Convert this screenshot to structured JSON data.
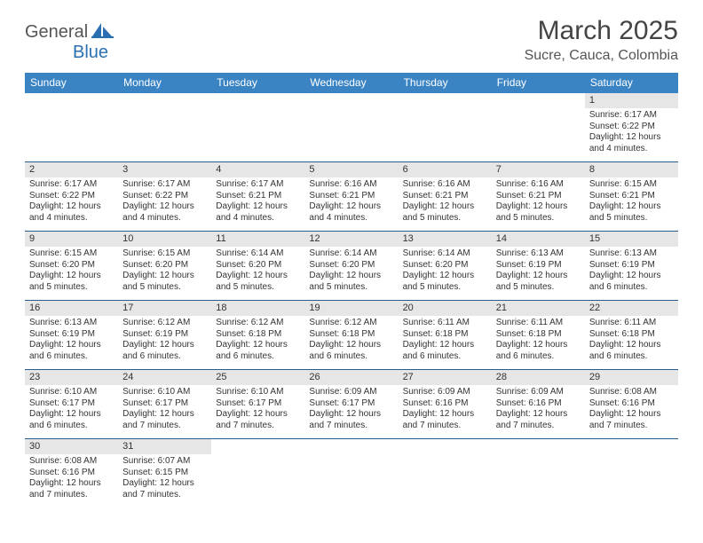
{
  "logo": {
    "text1": "General",
    "text2": "Blue"
  },
  "title": "March 2025",
  "location": "Sucre, Cauca, Colombia",
  "colors": {
    "header_bg": "#3b84c4",
    "header_text": "#ffffff",
    "daynum_bg": "#e6e6e6",
    "row_border": "#2a5d8f",
    "title_color": "#444444",
    "location_color": "#555555",
    "logo_gray": "#555555",
    "logo_blue": "#2b6fb3"
  },
  "day_names": [
    "Sunday",
    "Monday",
    "Tuesday",
    "Wednesday",
    "Thursday",
    "Friday",
    "Saturday"
  ],
  "weeks": [
    [
      null,
      null,
      null,
      null,
      null,
      null,
      {
        "n": "1",
        "sr": "6:17 AM",
        "ss": "6:22 PM",
        "dl": "12 hours and 4 minutes."
      }
    ],
    [
      {
        "n": "2",
        "sr": "6:17 AM",
        "ss": "6:22 PM",
        "dl": "12 hours and 4 minutes."
      },
      {
        "n": "3",
        "sr": "6:17 AM",
        "ss": "6:22 PM",
        "dl": "12 hours and 4 minutes."
      },
      {
        "n": "4",
        "sr": "6:17 AM",
        "ss": "6:21 PM",
        "dl": "12 hours and 4 minutes."
      },
      {
        "n": "5",
        "sr": "6:16 AM",
        "ss": "6:21 PM",
        "dl": "12 hours and 4 minutes."
      },
      {
        "n": "6",
        "sr": "6:16 AM",
        "ss": "6:21 PM",
        "dl": "12 hours and 5 minutes."
      },
      {
        "n": "7",
        "sr": "6:16 AM",
        "ss": "6:21 PM",
        "dl": "12 hours and 5 minutes."
      },
      {
        "n": "8",
        "sr": "6:15 AM",
        "ss": "6:21 PM",
        "dl": "12 hours and 5 minutes."
      }
    ],
    [
      {
        "n": "9",
        "sr": "6:15 AM",
        "ss": "6:20 PM",
        "dl": "12 hours and 5 minutes."
      },
      {
        "n": "10",
        "sr": "6:15 AM",
        "ss": "6:20 PM",
        "dl": "12 hours and 5 minutes."
      },
      {
        "n": "11",
        "sr": "6:14 AM",
        "ss": "6:20 PM",
        "dl": "12 hours and 5 minutes."
      },
      {
        "n": "12",
        "sr": "6:14 AM",
        "ss": "6:20 PM",
        "dl": "12 hours and 5 minutes."
      },
      {
        "n": "13",
        "sr": "6:14 AM",
        "ss": "6:20 PM",
        "dl": "12 hours and 5 minutes."
      },
      {
        "n": "14",
        "sr": "6:13 AM",
        "ss": "6:19 PM",
        "dl": "12 hours and 5 minutes."
      },
      {
        "n": "15",
        "sr": "6:13 AM",
        "ss": "6:19 PM",
        "dl": "12 hours and 6 minutes."
      }
    ],
    [
      {
        "n": "16",
        "sr": "6:13 AM",
        "ss": "6:19 PM",
        "dl": "12 hours and 6 minutes."
      },
      {
        "n": "17",
        "sr": "6:12 AM",
        "ss": "6:19 PM",
        "dl": "12 hours and 6 minutes."
      },
      {
        "n": "18",
        "sr": "6:12 AM",
        "ss": "6:18 PM",
        "dl": "12 hours and 6 minutes."
      },
      {
        "n": "19",
        "sr": "6:12 AM",
        "ss": "6:18 PM",
        "dl": "12 hours and 6 minutes."
      },
      {
        "n": "20",
        "sr": "6:11 AM",
        "ss": "6:18 PM",
        "dl": "12 hours and 6 minutes."
      },
      {
        "n": "21",
        "sr": "6:11 AM",
        "ss": "6:18 PM",
        "dl": "12 hours and 6 minutes."
      },
      {
        "n": "22",
        "sr": "6:11 AM",
        "ss": "6:18 PM",
        "dl": "12 hours and 6 minutes."
      }
    ],
    [
      {
        "n": "23",
        "sr": "6:10 AM",
        "ss": "6:17 PM",
        "dl": "12 hours and 6 minutes."
      },
      {
        "n": "24",
        "sr": "6:10 AM",
        "ss": "6:17 PM",
        "dl": "12 hours and 7 minutes."
      },
      {
        "n": "25",
        "sr": "6:10 AM",
        "ss": "6:17 PM",
        "dl": "12 hours and 7 minutes."
      },
      {
        "n": "26",
        "sr": "6:09 AM",
        "ss": "6:17 PM",
        "dl": "12 hours and 7 minutes."
      },
      {
        "n": "27",
        "sr": "6:09 AM",
        "ss": "6:16 PM",
        "dl": "12 hours and 7 minutes."
      },
      {
        "n": "28",
        "sr": "6:09 AM",
        "ss": "6:16 PM",
        "dl": "12 hours and 7 minutes."
      },
      {
        "n": "29",
        "sr": "6:08 AM",
        "ss": "6:16 PM",
        "dl": "12 hours and 7 minutes."
      }
    ],
    [
      {
        "n": "30",
        "sr": "6:08 AM",
        "ss": "6:16 PM",
        "dl": "12 hours and 7 minutes."
      },
      {
        "n": "31",
        "sr": "6:07 AM",
        "ss": "6:15 PM",
        "dl": "12 hours and 7 minutes."
      },
      null,
      null,
      null,
      null,
      null
    ]
  ],
  "labels": {
    "sunrise": "Sunrise:",
    "sunset": "Sunset:",
    "daylight": "Daylight:"
  }
}
